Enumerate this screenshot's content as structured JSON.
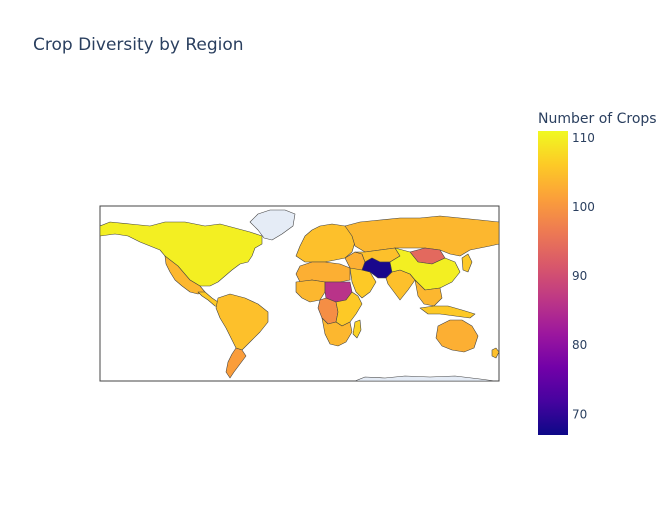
{
  "chart_data": {
    "type": "choropleth",
    "title": "Crop Diversity by Region",
    "colorbar": {
      "title": "Number of Crops",
      "range": [
        67,
        111
      ],
      "ticks": [
        70,
        80,
        90,
        100,
        110
      ],
      "colorscale": [
        "#0d0887",
        "#46039f",
        "#7201a8",
        "#9c179e",
        "#bd3786",
        "#d8576b",
        "#ed7953",
        "#fb9f3a",
        "#fdca26",
        "#f0f921"
      ]
    },
    "no_data_color": "#e5ecf6",
    "regions": [
      {
        "name": "North America",
        "value": 110
      },
      {
        "name": "Mexico",
        "value": 104
      },
      {
        "name": "Central America",
        "value": 106
      },
      {
        "name": "South America",
        "value": 105
      },
      {
        "name": "Argentina",
        "value": 101
      },
      {
        "name": "Greenland",
        "value": null
      },
      {
        "name": "Europe",
        "value": 105
      },
      {
        "name": "Russia",
        "value": 104
      },
      {
        "name": "North Africa",
        "value": 103
      },
      {
        "name": "West Africa",
        "value": 104
      },
      {
        "name": "Central Africa",
        "value": 99
      },
      {
        "name": "East Africa",
        "value": 106
      },
      {
        "name": "Sudan",
        "value": 86
      },
      {
        "name": "Southern Africa",
        "value": 104
      },
      {
        "name": "Madagascar",
        "value": 107
      },
      {
        "name": "Middle East",
        "value": 103
      },
      {
        "name": "Arabian Peninsula",
        "value": 106
      },
      {
        "name": "Central Asia",
        "value": 105
      },
      {
        "name": "Iran / Afghanistan",
        "value": 68
      },
      {
        "name": "South Asia",
        "value": 105
      },
      {
        "name": "China",
        "value": 110
      },
      {
        "name": "Mongolia",
        "value": 94
      },
      {
        "name": "Southeast Asia",
        "value": 104
      },
      {
        "name": "Indonesia",
        "value": 106
      },
      {
        "name": "Japan",
        "value": 106
      },
      {
        "name": "Australia",
        "value": 103
      },
      {
        "name": "New Zealand",
        "value": 105
      },
      {
        "name": "Antarctica",
        "value": null
      }
    ]
  }
}
